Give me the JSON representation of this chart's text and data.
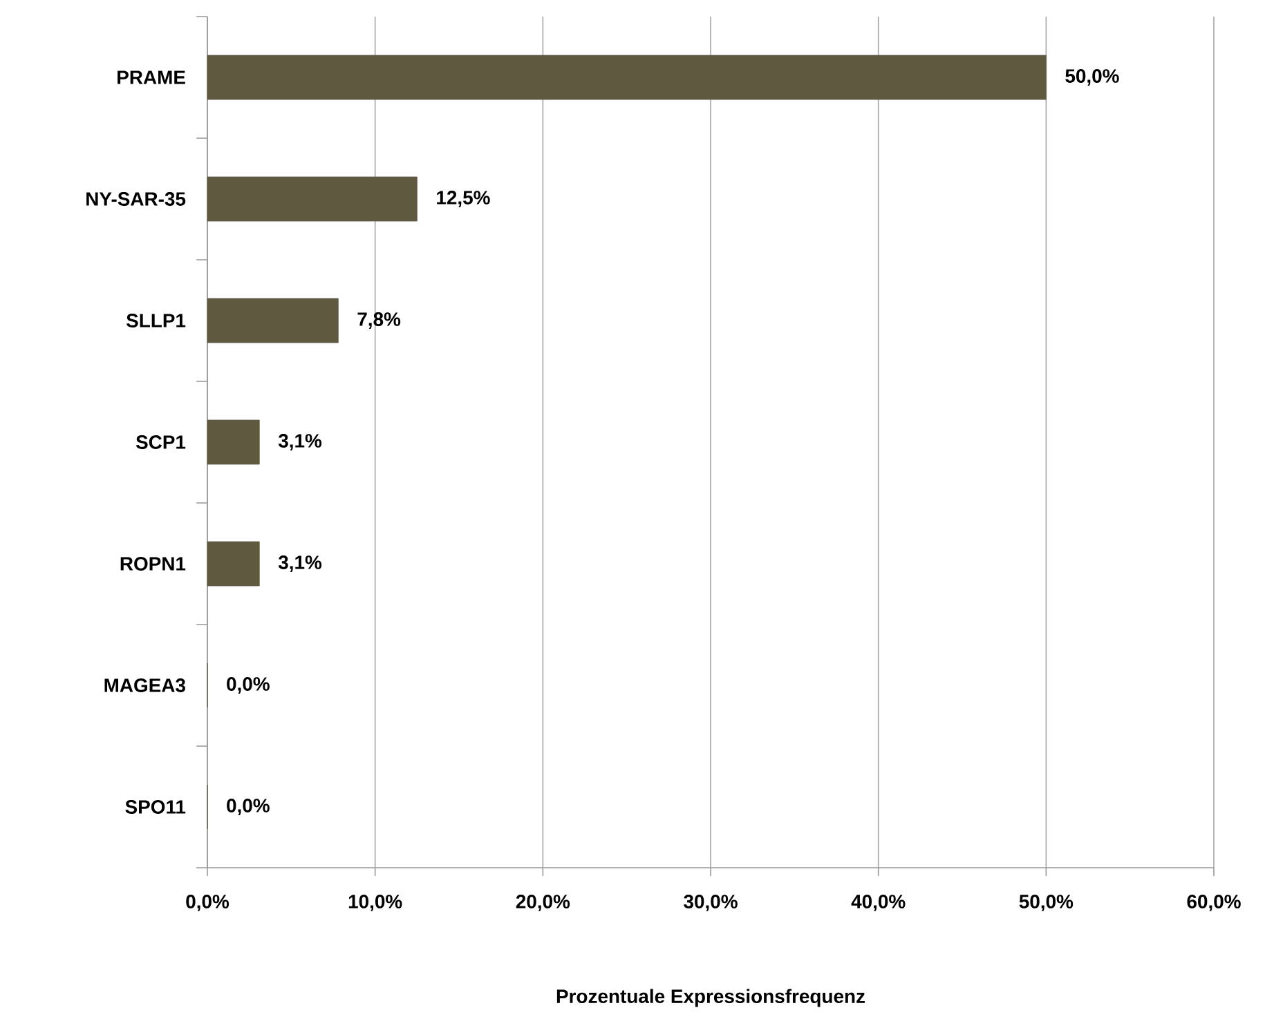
{
  "chart_data": {
    "type": "bar",
    "orientation": "horizontal",
    "categories": [
      "PRAME",
      "NY-SAR-35",
      "SLLP1",
      "SCP1",
      "ROPN1",
      "MAGEA3",
      "SPO11"
    ],
    "values": [
      50,
      12.5,
      7.8,
      3.1,
      3.1,
      0,
      0
    ],
    "value_labels": [
      "50,0%",
      "12,5%",
      "7,8%",
      "3,1%",
      "3,1%",
      "0,0%",
      "0,0%"
    ],
    "color": "#5f5940",
    "xlim": [
      0,
      60
    ],
    "xticks": [
      {
        "value": 0,
        "label": "0,0%"
      },
      {
        "value": 10,
        "label": "10,0%"
      },
      {
        "value": 20,
        "label": "20,0%"
      },
      {
        "value": 30,
        "label": "30,0%"
      },
      {
        "value": 40,
        "label": "40,0%"
      },
      {
        "value": 50,
        "label": "50,0%"
      },
      {
        "value": 60,
        "label": "60,0%"
      }
    ],
    "xlabel": "Prozentuale Expressionsfrequenz",
    "grid": "x"
  }
}
